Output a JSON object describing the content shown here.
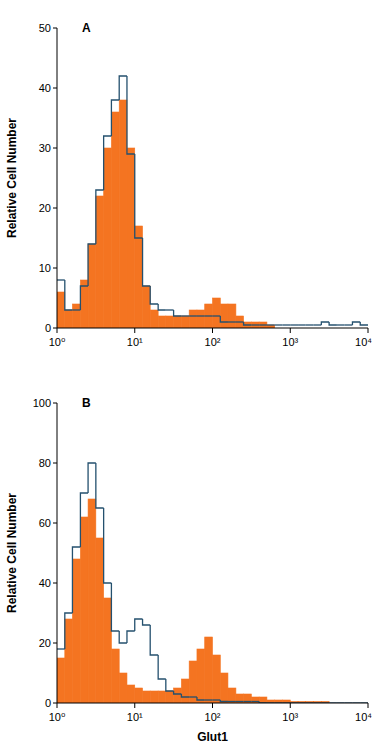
{
  "chart_data": [
    {
      "type": "histogram",
      "title": "A",
      "y_label": "Relative Cell Number",
      "log": "x",
      "bins": [
        1,
        1.26,
        1.58,
        2,
        2.51,
        3.16,
        3.98,
        5.01,
        6.31,
        7.94,
        10,
        12.6,
        15.8,
        20,
        25.1,
        31.6,
        39.8,
        50.1,
        63.1,
        79.4,
        100,
        126,
        158,
        200,
        251,
        316,
        398,
        501,
        631,
        794,
        1000,
        1260,
        1580,
        2000,
        2510,
        3160,
        3980,
        5010,
        6310,
        7940,
        10000
      ],
      "series": [
        {
          "type": "bar",
          "color": "#f47421",
          "values": [
            6,
            3,
            4,
            8,
            14,
            22,
            30,
            36,
            38,
            30,
            17,
            7,
            3,
            2,
            2,
            2,
            2,
            3,
            3,
            4,
            5,
            4,
            4,
            2,
            1,
            1,
            1,
            0.5,
            0,
            0,
            0,
            0,
            0,
            0,
            0,
            0,
            0,
            0,
            0,
            0
          ]
        },
        {
          "type": "line",
          "color": "#24506e",
          "values": [
            8,
            3,
            3,
            7,
            14,
            23,
            32,
            38,
            42,
            29,
            15,
            7,
            4,
            3,
            3,
            2,
            2,
            2,
            2,
            2,
            2,
            1,
            1,
            1,
            0.5,
            0.5,
            0.5,
            0.5,
            0.5,
            0.5,
            0.5,
            0.5,
            0.5,
            0.5,
            1,
            0.5,
            0.5,
            0.5,
            1,
            0.5
          ]
        }
      ],
      "xlim": [
        1,
        10000
      ],
      "xticks": [
        {
          "value": 1,
          "label": "10⁰"
        },
        {
          "value": 10,
          "label": "10¹"
        },
        {
          "value": 100,
          "label": "10²"
        },
        {
          "value": 1000,
          "label": "10³"
        },
        {
          "value": 10000,
          "label": "10⁴"
        }
      ],
      "ylim": [
        0,
        50
      ],
      "yticks": [
        0,
        10,
        20,
        30,
        40,
        50
      ]
    },
    {
      "type": "histogram",
      "title": "B",
      "y_label": "Relative Cell Number",
      "x_label": "Glut1",
      "log": "x",
      "bins": [
        1,
        1.26,
        1.58,
        2,
        2.51,
        3.16,
        3.98,
        5.01,
        6.31,
        7.94,
        10,
        12.6,
        15.8,
        20,
        25.1,
        31.6,
        39.8,
        50.1,
        63.1,
        79.4,
        100,
        126,
        158,
        200,
        251,
        316,
        398,
        501,
        631,
        794,
        1000,
        1260,
        1580,
        2000,
        2510,
        3160,
        3980,
        5010,
        6310,
        7940,
        10000
      ],
      "series": [
        {
          "type": "bar",
          "color": "#f47421",
          "values": [
            15,
            28,
            48,
            62,
            68,
            55,
            35,
            18,
            10,
            6,
            5,
            4,
            4,
            4,
            4,
            5,
            8,
            14,
            18,
            22,
            16,
            10,
            5,
            3,
            3,
            2,
            2,
            1,
            1,
            1,
            0.5,
            0.5,
            0.5,
            0.5,
            0.5,
            0,
            0,
            0,
            0,
            0
          ]
        },
        {
          "type": "line",
          "color": "#24506e",
          "values": [
            18,
            30,
            52,
            70,
            80,
            65,
            40,
            24,
            20,
            24,
            28,
            26,
            16,
            8,
            4,
            3,
            2,
            2,
            1,
            1,
            1,
            0.5,
            0.5,
            0.5,
            0.5,
            0.5,
            0,
            0,
            0,
            0,
            0,
            0,
            0,
            0,
            0,
            0,
            0,
            0,
            0,
            0
          ]
        }
      ],
      "xlim": [
        1,
        10000
      ],
      "xticks": [
        {
          "value": 1,
          "label": "10⁰"
        },
        {
          "value": 10,
          "label": "10¹"
        },
        {
          "value": 100,
          "label": "10²"
        },
        {
          "value": 1000,
          "label": "10³"
        },
        {
          "value": 10000,
          "label": "10⁴"
        }
      ],
      "ylim": [
        0,
        100
      ],
      "yticks": [
        0,
        20,
        40,
        60,
        80,
        100
      ]
    }
  ]
}
